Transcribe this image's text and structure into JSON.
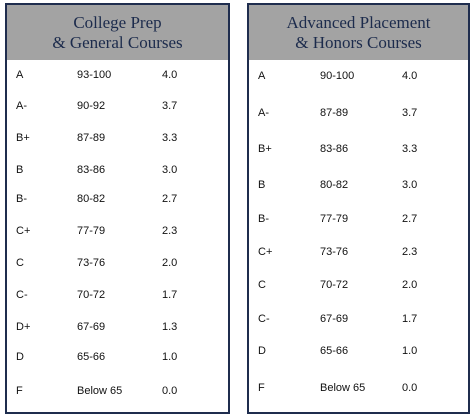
{
  "tables": [
    {
      "title": [
        "College Prep",
        "& General Courses"
      ],
      "rows": [
        [
          "A",
          "93-100",
          "4.0"
        ],
        [
          "A-",
          "90-92",
          "3.7"
        ],
        [
          "B+",
          "87-89",
          "3.3"
        ],
        [
          "B",
          "83-86",
          "3.0"
        ],
        [
          "B-",
          "80-82",
          "2.7"
        ],
        [
          "C+",
          "77-79",
          "2.3"
        ],
        [
          "C",
          "73-76",
          "2.0"
        ],
        [
          "C-",
          "70-72",
          "1.7"
        ],
        [
          "D+",
          "67-69",
          "1.3"
        ],
        [
          "D",
          "65-66",
          "1.0"
        ],
        [
          "F",
          "Below 65",
          "0.0"
        ]
      ]
    },
    {
      "title": [
        "Advanced Placement",
        "& Honors Courses"
      ],
      "rows": [
        [
          "A",
          "90-100",
          "4.0"
        ],
        [
          "A-",
          "87-89",
          "3.7"
        ],
        [
          "B+",
          "83-86",
          "3.3"
        ],
        [
          "B",
          "80-82",
          "3.0"
        ],
        [
          "B-",
          "77-79",
          "2.7"
        ],
        [
          "C+",
          "73-76",
          "2.3"
        ],
        [
          "C",
          "70-72",
          "2.0"
        ],
        [
          "C-",
          "67-69",
          "1.7"
        ],
        [
          "D",
          "65-66",
          "1.0"
        ],
        [
          "F",
          "Below 65",
          "0.0"
        ]
      ]
    }
  ]
}
